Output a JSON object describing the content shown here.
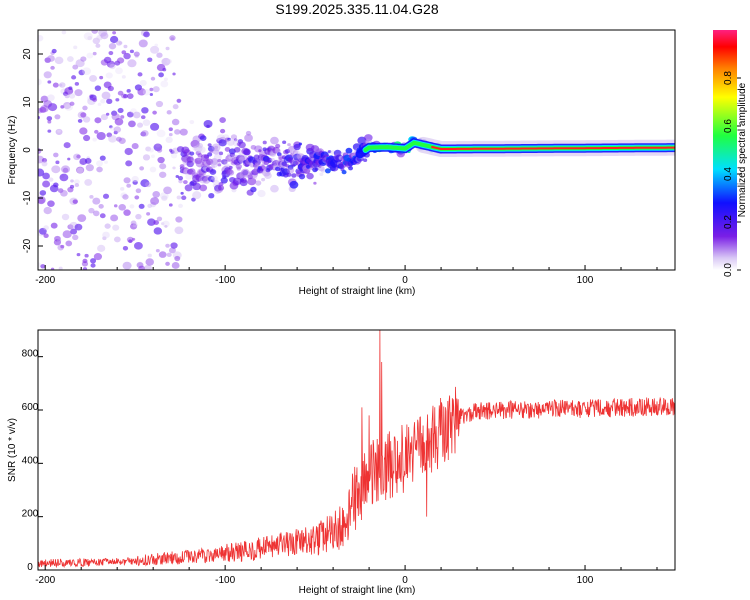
{
  "title": "S199.2025.335.11.04.G28",
  "chart_data": [
    {
      "type": "heatmap",
      "xlabel": "Height of straight line (km)",
      "ylabel": "Frequency (Hz)",
      "xlim": [
        -204,
        150
      ],
      "ylim": [
        -25,
        25
      ],
      "xticks": [
        -200,
        -100,
        0,
        100
      ],
      "yticks": [
        -20,
        -10,
        0,
        10,
        20
      ],
      "colorbar": {
        "label": "Normalized spectral amplitude",
        "range": [
          0.0,
          1.0
        ],
        "ticks": [
          0.0,
          0.2,
          0.4,
          0.6,
          0.8
        ]
      },
      "ridge": {
        "description_points": [
          {
            "x": -40,
            "y": -2.5
          },
          {
            "x": -30,
            "y": -2.0
          },
          {
            "x": -20,
            "y": 0.5
          },
          {
            "x": -10,
            "y": 0.6
          },
          {
            "x": 0,
            "y": 0.3
          },
          {
            "x": 5,
            "y": 1.5
          },
          {
            "x": 20,
            "y": 0.2
          },
          {
            "x": 150,
            "y": 0.5
          }
        ]
      }
    },
    {
      "type": "line",
      "xlabel": "Height of straight line (km)",
      "ylabel": "SNR (10 * v/v)",
      "xlim": [
        -204,
        150
      ],
      "ylim": [
        0,
        900
      ],
      "xticks": [
        -200,
        -100,
        0,
        100
      ],
      "yticks": [
        0,
        200,
        400,
        600,
        800
      ],
      "color": "#ee3333",
      "trend": [
        {
          "x": -204,
          "y": 25
        },
        {
          "x": -160,
          "y": 30
        },
        {
          "x": -140,
          "y": 40
        },
        {
          "x": -110,
          "y": 55
        },
        {
          "x": -90,
          "y": 70
        },
        {
          "x": -70,
          "y": 90
        },
        {
          "x": -50,
          "y": 110
        },
        {
          "x": -35,
          "y": 160
        },
        {
          "x": -25,
          "y": 300
        },
        {
          "x": -15,
          "y": 380
        },
        {
          "x": 0,
          "y": 420
        },
        {
          "x": 10,
          "y": 460
        },
        {
          "x": 20,
          "y": 520
        },
        {
          "x": 30,
          "y": 575
        },
        {
          "x": 40,
          "y": 595
        },
        {
          "x": 60,
          "y": 600
        },
        {
          "x": 100,
          "y": 605
        },
        {
          "x": 150,
          "y": 615
        }
      ],
      "spikes": [
        {
          "x": -24,
          "y": 610
        },
        {
          "x": -20,
          "y": 580
        },
        {
          "x": -14,
          "y": 900
        },
        {
          "x": -13,
          "y": 780
        },
        {
          "x": 12,
          "y": 200
        }
      ]
    }
  ]
}
